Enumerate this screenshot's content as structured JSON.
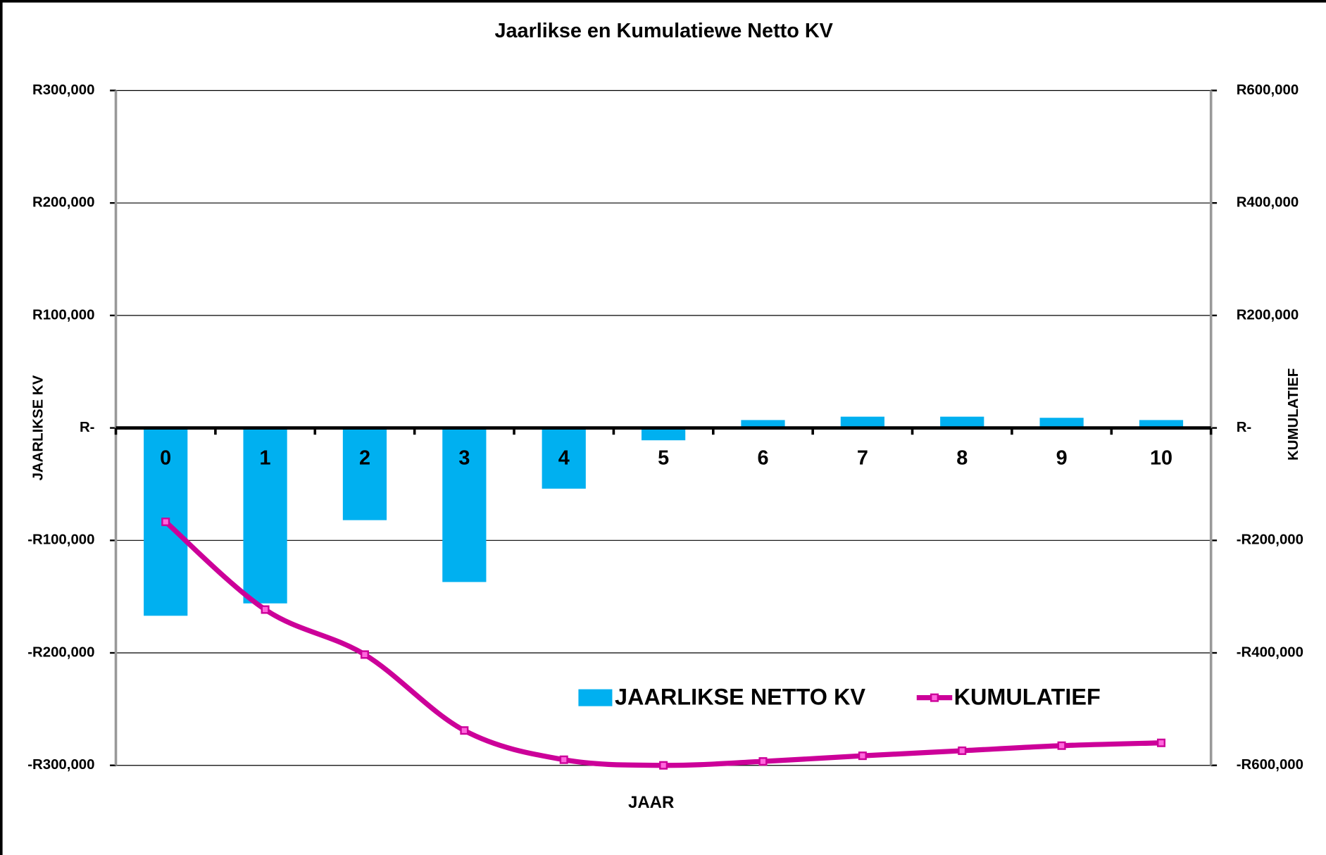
{
  "chart_data": {
    "type": "bar-line",
    "title": "Jaarlikse en Kumulatiewe Netto KV",
    "x_label": "JAAR",
    "y_label": "JAARLIKSE KV",
    "y2_label": "KUMULATIEF",
    "categories": [
      "0",
      "1",
      "2",
      "3",
      "4",
      "5",
      "6",
      "7",
      "8",
      "9",
      "10"
    ],
    "series": [
      {
        "name": "JAARLIKSE NETTO KV",
        "type": "bar",
        "color": "#00b0f0",
        "axis": "y",
        "values": [
          -167000,
          -156000,
          -82000,
          -137000,
          -54000,
          -11000,
          7000,
          10000,
          10000,
          9000,
          7000
        ]
      },
      {
        "name": "KUMULATIEF",
        "type": "line",
        "color": "#cc0099",
        "marker_color": "#ff66dd",
        "axis": "y2",
        "values": [
          -167000,
          -323000,
          -403000,
          -538000,
          -590000,
          -600000,
          -593000,
          -583000,
          -574000,
          -565000,
          -560000
        ]
      }
    ],
    "ylim": [
      -300000,
      300000
    ],
    "yticks": [
      {
        "value": -300000,
        "label": "-R300,000"
      },
      {
        "value": -200000,
        "label": "-R200,000"
      },
      {
        "value": -100000,
        "label": "-R100,000"
      },
      {
        "value": 0,
        "label": "R-"
      },
      {
        "value": 100000,
        "label": "R100,000"
      },
      {
        "value": 200000,
        "label": "R200,000"
      },
      {
        "value": 300000,
        "label": "R300,000"
      }
    ],
    "y2lim": [
      -600000,
      600000
    ],
    "y2ticks": [
      {
        "value": -600000,
        "label": "-R600,000"
      },
      {
        "value": -400000,
        "label": "-R400,000"
      },
      {
        "value": -200000,
        "label": "-R200,000"
      },
      {
        "value": 0,
        "label": "R-"
      },
      {
        "value": 200000,
        "label": "R200,000"
      },
      {
        "value": 400000,
        "label": "R400,000"
      },
      {
        "value": 600000,
        "label": "R600,000"
      }
    ],
    "grid": true,
    "legend": "lower right"
  }
}
